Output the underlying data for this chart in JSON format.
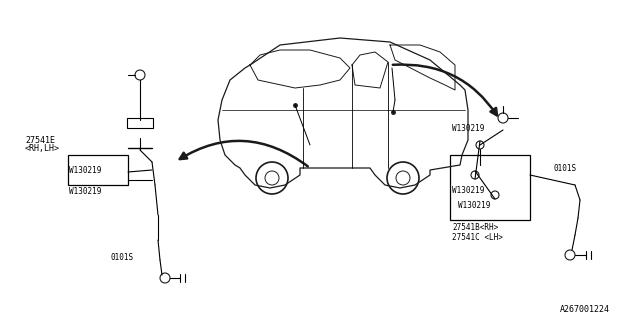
{
  "bg_color": "#ffffff",
  "line_color": "#000000",
  "diagram_color": "#1a1a1a",
  "part_number_bottom_right": "A267001224",
  "labels": {
    "left_top": "27541E",
    "left_top2": "<RH,LH>",
    "left_w1": "W130219",
    "left_w2": "W130219",
    "left_bottom": "0101S",
    "right_w1": "W130219",
    "right_w2": "W130219",
    "right_w3": "W130219",
    "right_bottom1": "27541B<RH>",
    "right_bottom2": "27541C <LH>",
    "right_label": "0101S"
  },
  "figsize": [
    6.4,
    3.2
  ],
  "dpi": 100
}
